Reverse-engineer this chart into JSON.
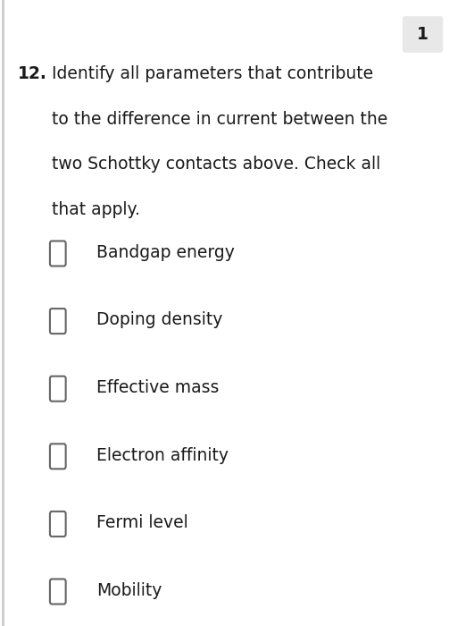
{
  "question_number": "12.",
  "question_text": "Identify all parameters that contribute\nto the difference in current between the\ntwo Schottky contacts above. Check all\nthat apply.",
  "options": [
    "Bandgap energy",
    "Doping density",
    "Effective mass",
    "Electron affinity",
    "Fermi level",
    "Mobility"
  ],
  "point_label": "1",
  "bg_color": "#ffffff",
  "text_color": "#1a1a1a",
  "checkbox_color": "#666666",
  "checkbox_size": 0.032,
  "question_fontsize": 13.5,
  "option_fontsize": 13.5,
  "number_fontsize": 13.5,
  "point_fontsize": 13.5,
  "point_bg": "#e8e8e8"
}
